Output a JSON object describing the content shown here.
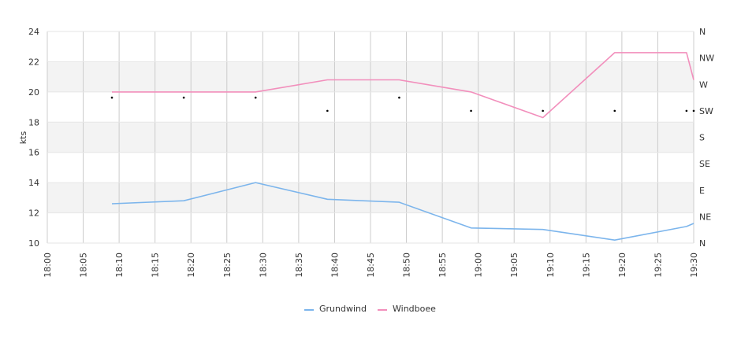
{
  "chart_data": {
    "type": "line",
    "ylabel": "kts",
    "ylim": [
      10,
      24
    ],
    "yticks": [
      "10",
      "12",
      "14",
      "16",
      "18",
      "20",
      "22",
      "24"
    ],
    "right_axis_labels": [
      "N",
      "NE",
      "E",
      "SE",
      "S",
      "SW",
      "W",
      "NW",
      "N"
    ],
    "x_range": [
      "18:00",
      "19:30"
    ],
    "xticks": [
      "18:00",
      "18:05",
      "18:10",
      "18:15",
      "18:20",
      "18:25",
      "18:30",
      "18:35",
      "18:40",
      "18:45",
      "18:50",
      "18:55",
      "19:00",
      "19:05",
      "19:10",
      "19:15",
      "19:20",
      "19:25",
      "19:30"
    ],
    "grid": true,
    "legend_position": "bottom",
    "series": [
      {
        "name": "Grundwind",
        "color": "#7cb5ec",
        "points": [
          [
            "18:09",
            12.6
          ],
          [
            "18:19",
            12.8
          ],
          [
            "18:29",
            14.0
          ],
          [
            "18:39",
            12.9
          ],
          [
            "18:49",
            12.7
          ],
          [
            "18:59",
            11.0
          ],
          [
            "19:09",
            10.9
          ],
          [
            "19:19",
            10.2
          ],
          [
            "19:29",
            11.1
          ],
          [
            "19:30",
            11.3
          ]
        ]
      },
      {
        "name": "Windboee",
        "color": "#f28fbc",
        "points": [
          [
            "18:09",
            20.0
          ],
          [
            "18:19",
            20.0
          ],
          [
            "18:29",
            20.0
          ],
          [
            "18:39",
            20.8
          ],
          [
            "18:49",
            20.8
          ],
          [
            "18:59",
            20.0
          ],
          [
            "19:09",
            18.3
          ],
          [
            "19:19",
            22.6
          ],
          [
            "19:29",
            22.6
          ],
          [
            "19:30",
            20.8
          ]
        ]
      }
    ],
    "direction_markers": [
      [
        "18:09",
        "WSW"
      ],
      [
        "18:19",
        "WSW"
      ],
      [
        "18:29",
        "WSW"
      ],
      [
        "18:39",
        "SW"
      ],
      [
        "18:49",
        "WSW"
      ],
      [
        "18:59",
        "SW"
      ],
      [
        "19:09",
        "SW"
      ],
      [
        "19:19",
        "SW"
      ],
      [
        "19:29",
        "SW"
      ],
      [
        "19:30",
        "SW"
      ]
    ]
  }
}
